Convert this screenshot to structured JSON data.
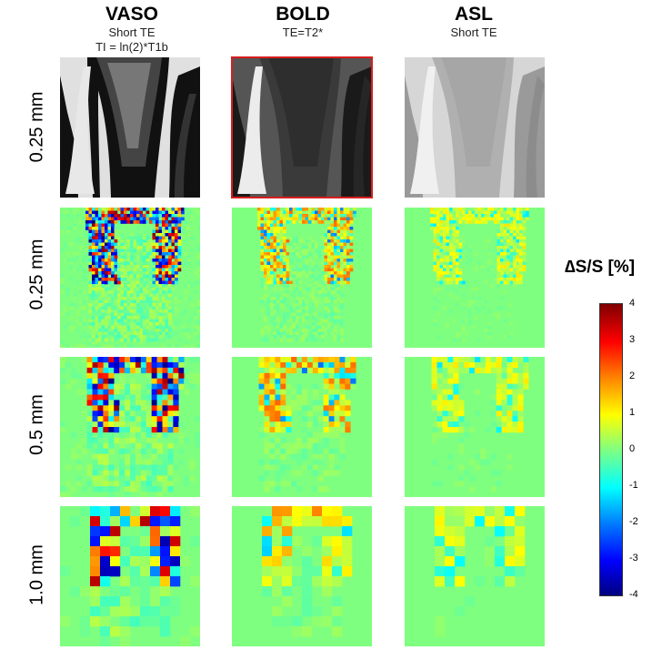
{
  "columns": [
    {
      "title": "VASO",
      "sub1": "Short TE",
      "sub2": "TI = ln(2)*T1b"
    },
    {
      "title": "BOLD",
      "sub1": "TE=T2*",
      "sub2": ""
    },
    {
      "title": "ASL",
      "sub1": "Short TE",
      "sub2": ""
    }
  ],
  "rows": [
    "0.25 mm",
    "0.25 mm",
    "0.5 mm",
    "1.0 mm"
  ],
  "colorbar": {
    "title": "∆S/S [%]",
    "ticks": [
      "4",
      "3",
      "2",
      "1",
      "0",
      "-1",
      "-2",
      "-3",
      "-4"
    ],
    "range": [
      -4,
      4
    ]
  },
  "colors": {
    "background": "#7fff7f",
    "highlight_border": "#d81e1e"
  }
}
